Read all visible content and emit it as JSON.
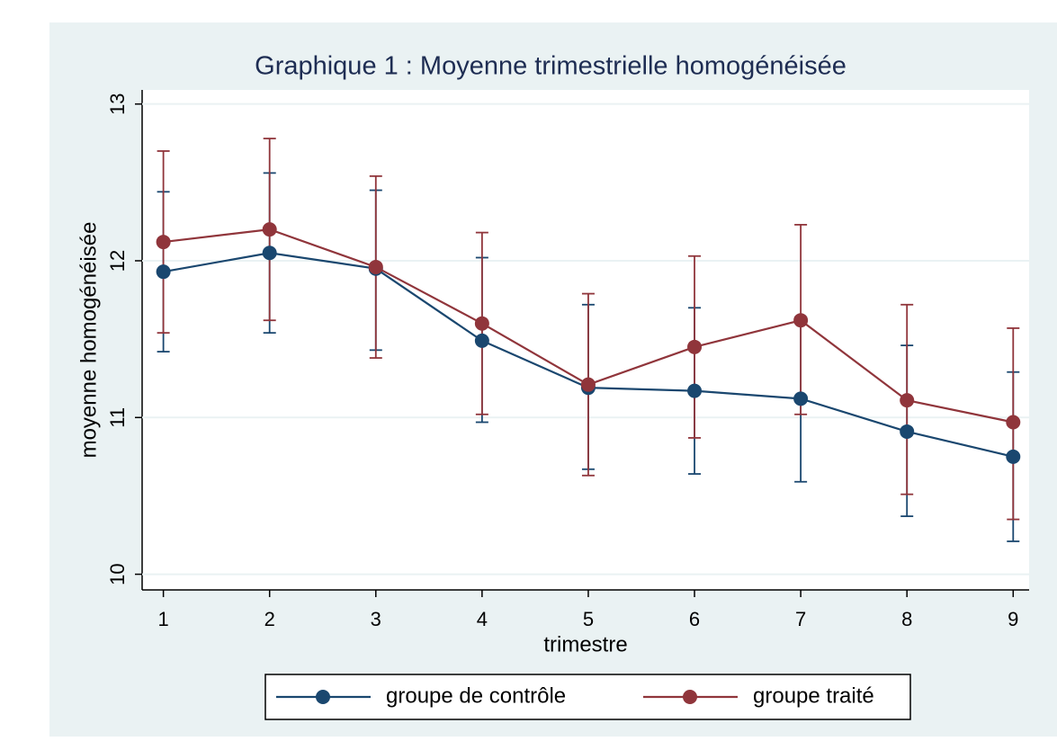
{
  "chart_data": {
    "type": "line",
    "title": "Graphique 1 : Moyenne trimestrielle homogénéisée",
    "x_label": "trimestre",
    "y_label": "moyenne homogénéisée",
    "x": [
      1,
      2,
      3,
      4,
      5,
      6,
      7,
      8,
      9
    ],
    "xlim": [
      0.8,
      9.15
    ],
    "xticks": [
      1,
      2,
      3,
      4,
      5,
      6,
      7,
      8,
      9
    ],
    "ylim": [
      9.9,
      13.09
    ],
    "yticks": [
      10,
      11,
      12,
      13
    ],
    "grid": true,
    "legend": "bottom",
    "series": [
      {
        "name": "groupe de contrôle",
        "color": "#1a476f",
        "values": [
          11.93,
          12.05,
          11.95,
          11.49,
          11.19,
          11.17,
          11.12,
          10.91,
          10.75
        ],
        "lower": [
          11.42,
          11.54,
          11.43,
          10.97,
          10.67,
          10.64,
          10.59,
          10.37,
          10.21
        ],
        "upper": [
          12.44,
          12.56,
          12.45,
          12.02,
          11.72,
          11.7,
          11.64,
          11.46,
          11.29
        ]
      },
      {
        "name": "groupe traité",
        "color": "#90353b",
        "values": [
          12.12,
          12.2,
          11.96,
          11.6,
          11.21,
          11.45,
          11.62,
          11.11,
          10.97
        ],
        "lower": [
          11.54,
          11.62,
          11.38,
          11.02,
          10.63,
          10.87,
          11.02,
          10.51,
          10.35
        ],
        "upper": [
          12.7,
          12.78,
          12.54,
          12.18,
          11.79,
          12.03,
          12.23,
          11.72,
          11.57
        ]
      }
    ]
  }
}
